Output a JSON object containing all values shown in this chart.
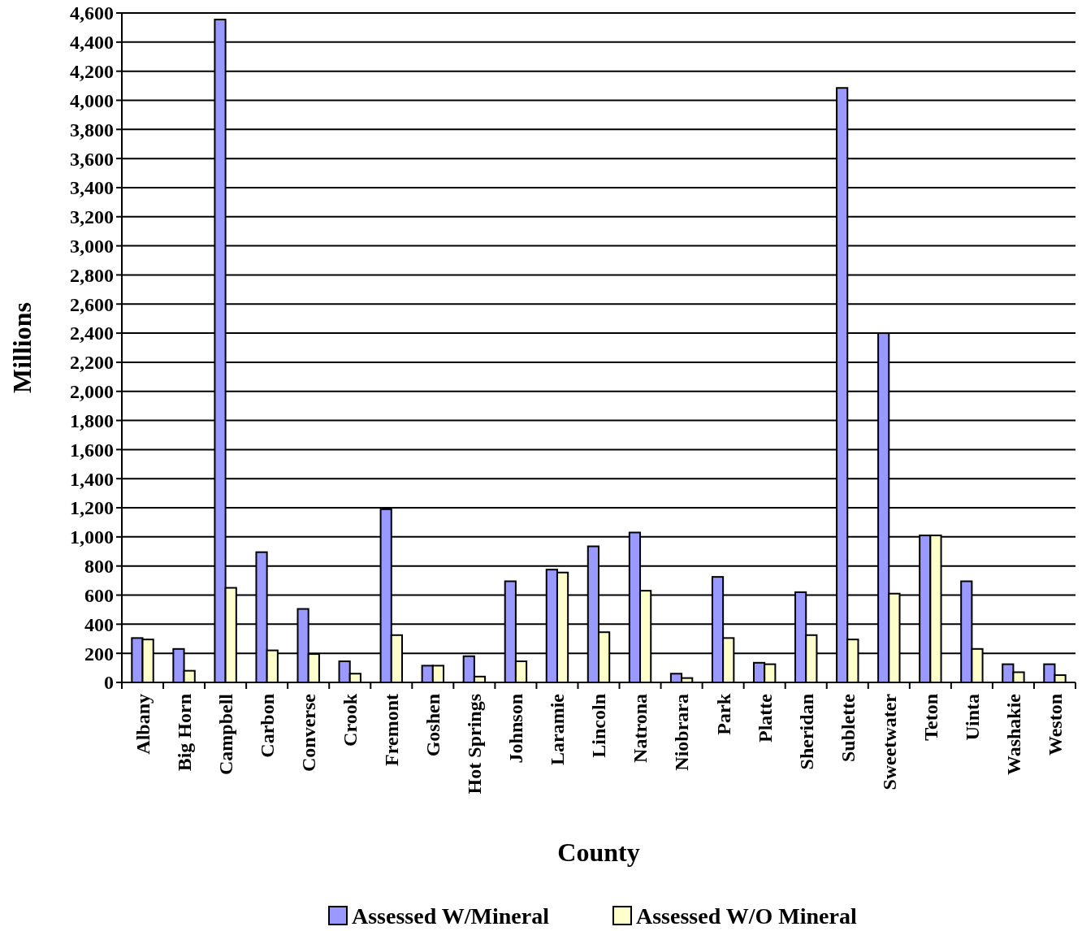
{
  "chart_data": {
    "type": "bar",
    "xlabel": "County",
    "ylabel": "Millions",
    "categories": [
      "Albany",
      "Big Horn",
      "Campbell",
      "Carbon",
      "Converse",
      "Crook",
      "Fremont",
      "Goshen",
      "Hot Springs",
      "Johnson",
      "Laramie",
      "Lincoln",
      "Natrona",
      "Niobrara",
      "Park",
      "Platte",
      "Sheridan",
      "Sublette",
      "Sweetwater",
      "Teton",
      "Uinta",
      "Washakie",
      "Weston"
    ],
    "series": [
      {
        "name": "Assessed W/Mineral",
        "color": "#9999ff",
        "values": [
          305,
          230,
          4555,
          895,
          505,
          145,
          1190,
          115,
          180,
          695,
          775,
          935,
          1030,
          60,
          725,
          135,
          620,
          4085,
          2400,
          1010,
          695,
          125,
          125
        ]
      },
      {
        "name": "Assessed W/O Mineral",
        "color": "#ffffcc",
        "values": [
          295,
          80,
          650,
          220,
          195,
          60,
          325,
          115,
          40,
          145,
          755,
          345,
          630,
          30,
          305,
          125,
          325,
          295,
          610,
          1010,
          230,
          70,
          50
        ]
      }
    ],
    "ylim": [
      0,
      4600
    ],
    "yticks": [
      0,
      {
        "value": 200,
        "label": "200"
      },
      {
        "value": 400,
        "label": "400"
      },
      {
        "value": 600,
        "label": "600"
      },
      {
        "value": 800,
        "label": "800"
      },
      {
        "value": 1000,
        "label": "1,000"
      },
      {
        "value": 1200,
        "label": "1,200"
      },
      {
        "value": 1400,
        "label": "1,400"
      },
      {
        "value": 1600,
        "label": "1,600"
      },
      {
        "value": 1800,
        "label": "1,800"
      },
      {
        "value": 2000,
        "label": "2,000"
      },
      {
        "value": 2200,
        "label": "2,200"
      },
      {
        "value": 2400,
        "label": "2,400"
      },
      {
        "value": 2600,
        "label": "2,600"
      },
      {
        "value": 2800,
        "label": "2,800"
      },
      {
        "value": 3000,
        "label": "3,000"
      },
      {
        "value": 3200,
        "label": "3,200"
      },
      {
        "value": 3400,
        "label": "3,400"
      },
      {
        "value": 3600,
        "label": "3,600"
      },
      {
        "value": 3800,
        "label": "3,800"
      },
      {
        "value": 4000,
        "label": "4,000"
      },
      {
        "value": 4200,
        "label": "4,200"
      },
      {
        "value": 4400,
        "label": "4,400"
      },
      {
        "value": 4600,
        "label": "4,600"
      }
    ],
    "grid": "y",
    "legend": "bottom"
  }
}
